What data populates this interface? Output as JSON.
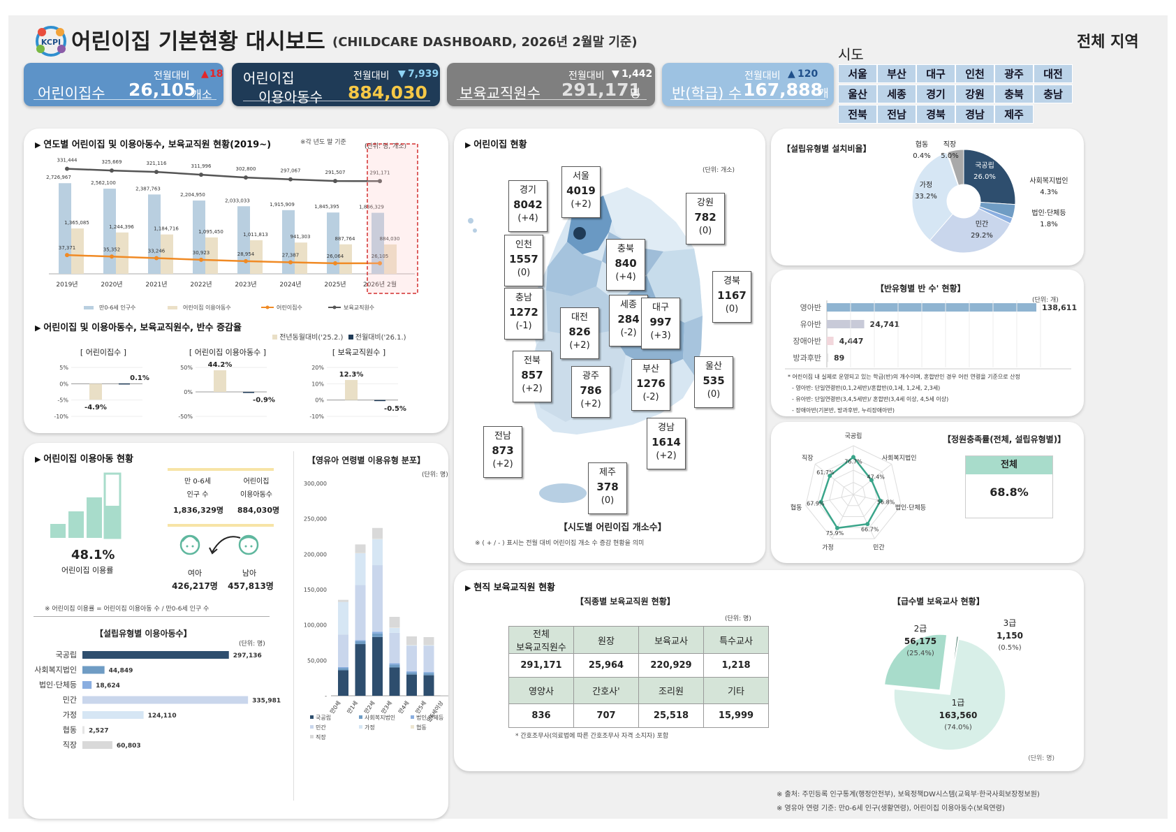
{
  "header": {
    "title": "어린이집 기본현황 대시보드",
    "subtitle": "(CHILDCARE DASHBOARD, 2026년 2월말 기준)",
    "logo_text": "KCPI",
    "region_selected": "전체",
    "region_suffix": "지역"
  },
  "kpis": [
    {
      "label": "어린이집수",
      "value": "26,105",
      "unit": "개소",
      "change_label": "전월대비",
      "change_dir": "▲",
      "change": "18",
      "color": "#5d93c8"
    },
    {
      "label": "어린이집",
      "label2": "이용아동수",
      "value": "884,030",
      "unit": "",
      "change_label": "전월대비",
      "change_dir": "▼",
      "change": "7,939",
      "color": "#1f3b57"
    },
    {
      "label": "보육교직원수",
      "value": "291,171",
      "unit": "명",
      "change_label": "전월대비",
      "change_dir": "▼",
      "change": "1,442",
      "color": "#7f7f7f"
    },
    {
      "label": "반(학급) 수",
      "value": "167,888",
      "unit": "개",
      "change_label": "전월대비",
      "change_dir": "▲",
      "change": "120",
      "color": "#9dc2e2"
    }
  ],
  "regions": {
    "title": "시도",
    "items": [
      "서울",
      "부산",
      "대구",
      "인천",
      "광주",
      "대전",
      "울산",
      "세종",
      "경기",
      "강원",
      "충북",
      "충남",
      "전북",
      "전남",
      "경북",
      "경남",
      "제주"
    ]
  },
  "yearly": {
    "title": "연도별 어린이집 및 이용아동수, 보육교직원 현황(2019~)",
    "note": "※각 년도 말 기준",
    "unit": "(단위: 명, 개소)",
    "legend": [
      "만0-6세 인구수",
      "어린이집 이용아동수",
      "어린이집수",
      "보육교직원수"
    ],
    "chart_data": {
      "type": "bar",
      "categories": [
        "2019년",
        "2020년",
        "2021년",
        "2022년",
        "2023년",
        "2024년",
        "2025년",
        "2026년 2월"
      ],
      "series": [
        {
          "name": "만0-6세 인구수",
          "values": [
            2726967,
            2562100,
            2387763,
            2204950,
            2033033,
            1915909,
            1845395,
            1836329
          ],
          "labels": [
            "2,726,967",
            "2,562,100",
            "2,387,763",
            "2,204,950",
            "2,033,033",
            "1,915,909",
            "1,845,395",
            "1,836,329"
          ]
        },
        {
          "name": "어린이집 이용아동수",
          "values": [
            1365085,
            1244396,
            1184716,
            1095450,
            1011813,
            941303,
            887764,
            884030
          ],
          "labels": [
            "1,365,085",
            "1,244,396",
            "1,184,716",
            "1,095,450",
            "1,011,813",
            "941,303",
            "887,764",
            "884,030"
          ]
        },
        {
          "name": "어린이집수",
          "values": [
            37371,
            35352,
            33246,
            30923,
            28954,
            27387,
            26064,
            26105
          ],
          "labels": [
            "37,371",
            "35,352",
            "33,246",
            "30,923",
            "28,954",
            "27,387",
            "26,064",
            "26,105"
          ]
        },
        {
          "name": "보육교직원수",
          "values": [
            331444,
            325669,
            321116,
            311996,
            302800,
            297067,
            291507,
            291171
          ],
          "labels": [
            "331,444",
            "325,669",
            "321,116",
            "311,996",
            "302,800",
            "297,067",
            "291,507",
            "291,171"
          ]
        }
      ]
    }
  },
  "growth": {
    "title": "어린이집 및 이용아동수, 보육교직원수, 반수 증감율",
    "legend": [
      "전년동월대비('25.2.)",
      "전월대비('26.1.)"
    ],
    "chart_data": [
      {
        "type": "bar",
        "title": "[ 어린이집수 ]",
        "yticks": [
          "5%",
          "0%",
          "-5%",
          "-10%"
        ],
        "ylim": [
          -10,
          5
        ],
        "values": [
          -4.9,
          0.1
        ],
        "labels": [
          "-4.9%",
          "0.1%"
        ]
      },
      {
        "type": "bar",
        "title": "[ 어린이집 이용아동수 ]",
        "yticks": [
          "50%",
          "0%",
          "-50%"
        ],
        "ylim": [
          -50,
          50
        ],
        "values": [
          44.2,
          -0.9
        ],
        "labels": [
          "44.2%",
          "-0.9%"
        ]
      },
      {
        "type": "bar",
        "title": "[ 보육교직원수 ]",
        "yticks": [
          "20%",
          "10%",
          "0%",
          "-10%"
        ],
        "ylim": [
          -10,
          20
        ],
        "values": [
          12.3,
          -0.5
        ],
        "labels": [
          "12.3%",
          "-0.5%"
        ]
      }
    ]
  },
  "usage": {
    "title": "어린이집 이용아동 현황",
    "rate": "48.1%",
    "rate_label": "어린이집 이용률",
    "pop_label1": "만 0-6세",
    "pop_label2": "인구 수",
    "pop_value": "1,836,329명",
    "use_label1": "어린이집",
    "use_label2": "이용아동수",
    "use_value": "884,030명",
    "girl_label": "여아",
    "girl_value": "426,217명",
    "boy_label": "남아",
    "boy_value": "457,813명",
    "note": "※ 어린이집 이용률 = 어린이집 이용아동 수 / 만0-6세 인구 수"
  },
  "bytype": {
    "title": "【설립유형별 이용아동수】",
    "unit": "(단위: 명)",
    "chart_data": {
      "type": "bar",
      "categories": [
        "국공립",
        "사회복지법인",
        "법인·단체등",
        "민간",
        "가정",
        "협동",
        "직장"
      ],
      "values": [
        297136,
        44849,
        18624,
        335981,
        124110,
        2527,
        60803
      ],
      "labels": [
        "297,136",
        "44,849",
        "18,624",
        "335,981",
        "124,110",
        "2,527",
        "60,803"
      ],
      "colors": [
        "#2e4e6e",
        "#6f9cc4",
        "#8aaee0",
        "#c9d6ec",
        "#d6e6f4",
        "#e5e5e5",
        "#d9d9d9"
      ]
    }
  },
  "agedist": {
    "title": "【영유아 연령별 이용유형 분포】",
    "unit": "(단위: 명)",
    "chart_data": {
      "type": "bar",
      "categories": [
        "만0세",
        "만1세",
        "만2세",
        "만3세",
        "만4세",
        "만5세",
        "만6세이상"
      ],
      "yticks": [
        "300,000",
        "250,000",
        "200,000",
        "150,000",
        "100,000",
        "50,000",
        "-"
      ],
      "ylim": [
        0,
        300000
      ],
      "series": [
        {
          "name": "국공립",
          "values": [
            36000,
            73000,
            83000,
            40000,
            30000,
            29000,
            0
          ],
          "color": "#2e4e6e"
        },
        {
          "name": "사회복지법인",
          "values": [
            3000,
            4000,
            5000,
            4000,
            3000,
            3000,
            0
          ],
          "color": "#6f9cc4"
        },
        {
          "name": "법인·단체등",
          "values": [
            1500,
            1500,
            2500,
            2000,
            1500,
            1500,
            0
          ],
          "color": "#8aaee0"
        },
        {
          "name": "민간",
          "values": [
            46000,
            78000,
            94000,
            43000,
            36000,
            37000,
            0
          ],
          "color": "#c9d6ec"
        },
        {
          "name": "가정",
          "values": [
            46000,
            45000,
            37000,
            7000,
            1000,
            1000,
            0
          ],
          "color": "#d6e6f4"
        },
        {
          "name": "협동",
          "values": [
            0,
            300,
            600,
            500,
            400,
            400,
            0
          ],
          "color": "#ede5d0"
        },
        {
          "name": "직장",
          "values": [
            3000,
            12000,
            15000,
            15000,
            12000,
            11000,
            1000
          ],
          "color": "#d9d9d9"
        }
      ]
    }
  },
  "map": {
    "title": "어린이집 현황",
    "unit": "(단위: 개소)",
    "caption": "【시도별 어린이집 개소수】",
    "note": "※ ( + / - ) 표시는 전월 대비 어린이집 개소 수 증감 현황을 의미",
    "regions": [
      {
        "name": "서울",
        "count": "4019",
        "change": "(+2)"
      },
      {
        "name": "경기",
        "count": "8042",
        "change": "(+4)"
      },
      {
        "name": "강원",
        "count": "782",
        "change": "(0)"
      },
      {
        "name": "인천",
        "count": "1557",
        "change": "(0)"
      },
      {
        "name": "충북",
        "count": "840",
        "change": "(+4)"
      },
      {
        "name": "경북",
        "count": "1167",
        "change": "(0)"
      },
      {
        "name": "충남",
        "count": "1272",
        "change": "(-1)"
      },
      {
        "name": "대전",
        "count": "826",
        "change": "(+2)"
      },
      {
        "name": "세종",
        "count": "284",
        "change": "(-2)"
      },
      {
        "name": "대구",
        "count": "997",
        "change": "(+3)"
      },
      {
        "name": "전북",
        "count": "857",
        "change": "(+2)"
      },
      {
        "name": "광주",
        "count": "786",
        "change": "(+2)"
      },
      {
        "name": "부산",
        "count": "1276",
        "change": "(-2)"
      },
      {
        "name": "울산",
        "count": "535",
        "change": "(0)"
      },
      {
        "name": "전남",
        "count": "873",
        "change": "(+2)"
      },
      {
        "name": "경남",
        "count": "1614",
        "change": "(+2)"
      },
      {
        "name": "제주",
        "count": "378",
        "change": "(0)"
      }
    ]
  },
  "ratio": {
    "title": "【설립유형별 설치비율】",
    "chart_data": {
      "type": "pie",
      "categories": [
        "국공립",
        "사회복지법인",
        "법인·단체등",
        "민간",
        "가정",
        "협동",
        "직장"
      ],
      "values": [
        26.0,
        4.3,
        1.8,
        29.2,
        33.2,
        0.4,
        5.0
      ],
      "labels": [
        "26.0%",
        "4.3%",
        "1.8%",
        "29.2%",
        "33.2%",
        "0.4%",
        "5.0%"
      ],
      "colors": [
        "#2e4e6e",
        "#6f9cc4",
        "#8aaee0",
        "#c9d6ec",
        "#d6e6f4",
        "#e8e8e8",
        "#a9a9a9"
      ]
    }
  },
  "classes": {
    "title": "【반유형별 반 수' 현황】",
    "unit": "(단위: 개)",
    "chart_data": {
      "type": "bar",
      "categories": [
        "영아반",
        "유아반",
        "장애아반",
        "방과후반"
      ],
      "values": [
        138611,
        24741,
        4447,
        89
      ],
      "labels": [
        "138,611",
        "24,741",
        "4,447",
        "89"
      ],
      "colors": [
        "#8fb4d1",
        "#c8cad8",
        "#f2d7dc",
        "#e0e0e0"
      ]
    },
    "notes": [
      "* 어린이집 내 실제로 운영되고 있는 학급(반)의 개수이며, 혼합반인 경우 어린 연령을 기준으로 산정",
      "- 영아반: 단일연령반(0,1,2세반)/혼합반(0,1세, 1,2세, 2,3세)",
      "- 유아반: 단일연령반(3,4,5세반)/ 혼합반(3,4세 이상, 4,5세 이상)",
      "- 장애아반(기본반, 방과후반, 누리장애아반)"
    ]
  },
  "fill": {
    "title": "【정원충족률(전체, 설립유형별)】",
    "total_label": "전체",
    "total_value": "68.8%",
    "chart_data": {
      "type": "radar",
      "categories": [
        "국공립",
        "사회복지법인",
        "법인·단체등",
        "민간",
        "가정",
        "협동",
        "직장"
      ],
      "values": [
        76.7,
        47.4,
        56.8,
        66.7,
        75.9,
        67.9,
        61.7
      ],
      "labels": [
        "76.7%",
        "47.4%",
        "56.8%",
        "66.7%",
        "75.9%",
        "67.9%",
        "61.7%"
      ]
    }
  },
  "staff": {
    "title": "현직 보육교직원 현황",
    "table_title": "【직종별 보육교직원 현황】",
    "unit": "(단위: 명)",
    "head1": [
      "전체",
      "원장",
      "보육교사",
      "특수교사"
    ],
    "head1_sub": "보육교직원수",
    "row1": [
      "291,171",
      "25,964",
      "220,929",
      "1,218"
    ],
    "head2": [
      "영양사",
      "간호사'",
      "조리원",
      "기타"
    ],
    "row2": [
      "836",
      "707",
      "25,518",
      "15,999"
    ],
    "note": "* 간호조무사(의료법에 따른 간호조무사 자격 소지자) 포함",
    "grade_title": "【급수별 보육교사 현황】",
    "grade_unit": "(단위: 명)",
    "chart_data": {
      "type": "pie",
      "categories": [
        "1급",
        "2급",
        "3급"
      ],
      "values": [
        163560,
        56175,
        1150
      ],
      "labels": [
        "163,560",
        "56,175",
        "1,150"
      ],
      "pct": [
        "(74.0%)",
        "(25.4%)",
        "(0.5%)"
      ],
      "colors": [
        "#d8efe8",
        "#a8dccb",
        "#3a6e5e"
      ]
    }
  },
  "footer": [
    "※ 출처: 주민등록 인구통계(행정안전부), 보육정책DW시스템(교육부·한국사회보장정보원)",
    "※ 영유아 연령 기준: 만0-6세 인구(생활연령), 어린이집 이용아동수(보육연령)"
  ]
}
